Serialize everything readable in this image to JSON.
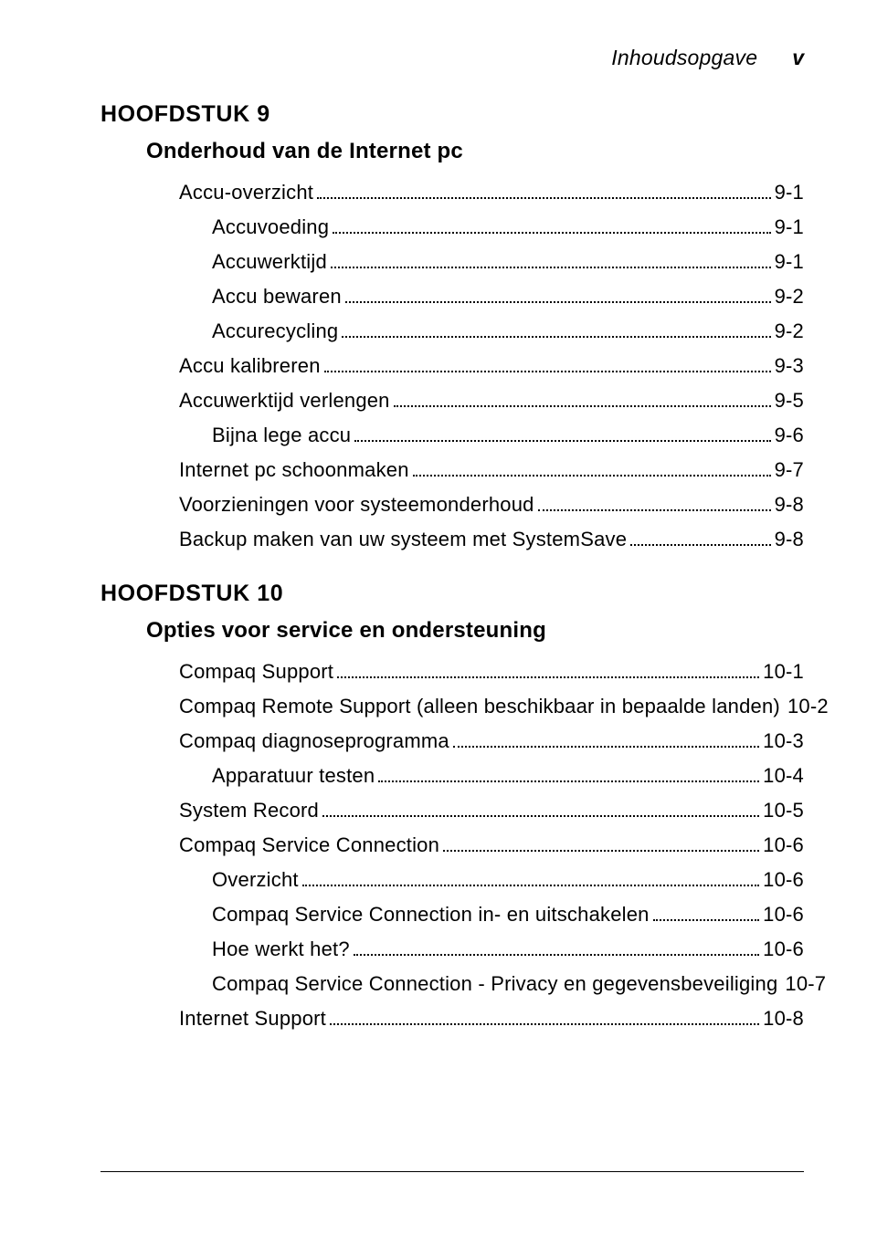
{
  "header": {
    "title": "Inhoudsopgave",
    "page_marker": "v"
  },
  "chapters": [
    {
      "label": "HOOFDSTUK 9",
      "title": "Onderhoud van de Internet pc",
      "entries": [
        {
          "indent": 2,
          "label": "Accu-overzicht",
          "page": "9-1"
        },
        {
          "indent": 3,
          "label": "Accuvoeding",
          "page": "9-1"
        },
        {
          "indent": 3,
          "label": "Accuwerktijd",
          "page": "9-1"
        },
        {
          "indent": 3,
          "label": "Accu bewaren",
          "page": "9-2"
        },
        {
          "indent": 3,
          "label": "Accurecycling",
          "page": "9-2"
        },
        {
          "indent": 2,
          "label": "Accu kalibreren",
          "page": "9-3"
        },
        {
          "indent": 2,
          "label": "Accuwerktijd verlengen",
          "page": "9-5"
        },
        {
          "indent": 3,
          "label": "Bijna lege accu",
          "page": "9-6"
        },
        {
          "indent": 2,
          "label": "Internet pc schoonmaken",
          "page": "9-7"
        },
        {
          "indent": 2,
          "label": "Voorzieningen voor systeemonderhoud",
          "page": "9-8"
        },
        {
          "indent": 2,
          "label": "Backup maken van uw systeem met SystemSave",
          "page": "9-8"
        }
      ]
    },
    {
      "label": "HOOFDSTUK 10",
      "title": "Opties voor service en ondersteuning",
      "entries": [
        {
          "indent": 2,
          "label": "Compaq Support",
          "page": "10-1"
        },
        {
          "indent": 2,
          "label": "Compaq Remote Support (alleen beschikbaar in bepaalde landen)",
          "page": "10-2"
        },
        {
          "indent": 2,
          "label": "Compaq diagnoseprogramma",
          "page": "10-3"
        },
        {
          "indent": 3,
          "label": "Apparatuur testen",
          "page": "10-4"
        },
        {
          "indent": 2,
          "label": "System Record",
          "page": "10-5"
        },
        {
          "indent": 2,
          "label": "Compaq Service Connection",
          "page": "10-6"
        },
        {
          "indent": 3,
          "label": "Overzicht",
          "page": "10-6"
        },
        {
          "indent": 3,
          "label": "Compaq Service Connection in- en uitschakelen",
          "page": "10-6"
        },
        {
          "indent": 3,
          "label": "Hoe werkt het?",
          "page": "10-6"
        },
        {
          "indent": 3,
          "label": "Compaq Service Connection - Privacy en gegevensbeveiliging",
          "page": "10-7"
        },
        {
          "indent": 2,
          "label": "Internet Support",
          "page": "10-8"
        }
      ]
    }
  ]
}
